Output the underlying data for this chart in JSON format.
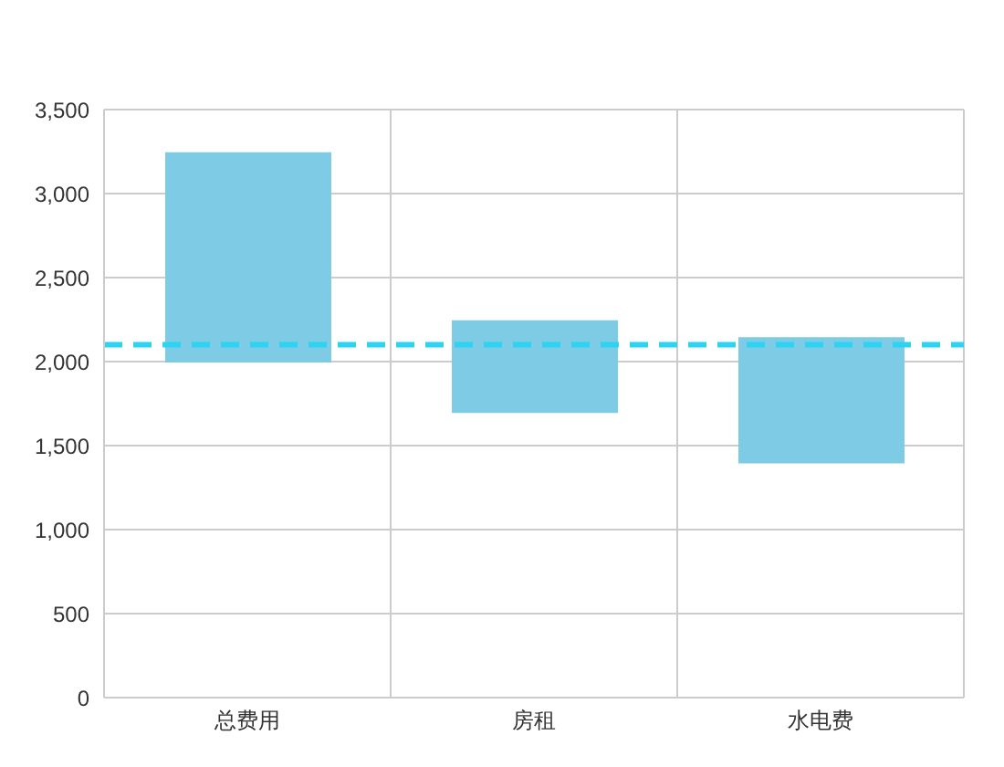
{
  "chart_data": {
    "type": "bar",
    "categories": [
      "总费用",
      "房租",
      "水电费"
    ],
    "values": [
      1240,
      540,
      740
    ],
    "base": [
      2000,
      1700,
      1400
    ],
    "color": "#7ecbe6",
    "ylim": [
      0,
      3500
    ],
    "yticks": [
      0,
      {
        "value": 500,
        "label": "500"
      },
      {
        "value": 1000,
        "label": "1,000"
      },
      {
        "value": 1500,
        "label": "1,500"
      },
      {
        "value": 2000,
        "label": "2,000"
      },
      {
        "value": 2500,
        "label": "2,500"
      },
      {
        "value": 3000,
        "label": "3,000"
      },
      {
        "value": 3500,
        "label": "3,500"
      }
    ],
    "grid": true,
    "ref_lines": [
      {
        "axis": "y",
        "value": 2100,
        "color": "#2ed3f2",
        "line_style": "dashed"
      }
    ]
  }
}
